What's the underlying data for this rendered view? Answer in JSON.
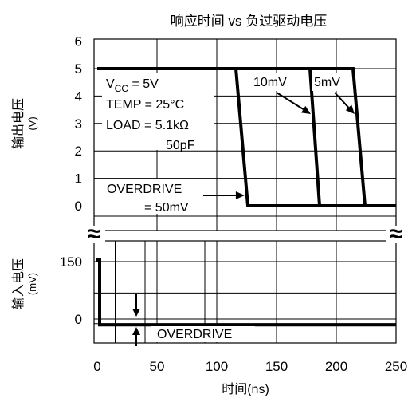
{
  "chart_data": {
    "type": "line",
    "title": "响应时间 vs 负过驱动电压",
    "xlabel": "时间(ns)",
    "x_ticks": [
      "0",
      "50",
      "100",
      "150",
      "200",
      "250"
    ],
    "xlim": [
      0,
      250
    ],
    "output_panel": {
      "ylabel": "输出电压",
      "ylabel_unit": "(V)",
      "y_ticks": [
        "6",
        "5",
        "4",
        "3",
        "2",
        "1",
        "0"
      ],
      "ylim": [
        -0.6,
        6
      ],
      "conditions": [
        "V_CC = 5V",
        "TEMP = 25°C",
        "LOAD = 5.1kΩ",
        "50pF"
      ],
      "series": [
        {
          "name": "OVERDRIVE = 50mV",
          "x": [
            0,
            116,
            126,
            250
          ],
          "y": [
            5,
            5,
            0,
            0
          ]
        },
        {
          "name": "10mV",
          "x": [
            0,
            178,
            186,
            250
          ],
          "y": [
            5,
            5,
            0,
            0
          ]
        },
        {
          "name": "5mV",
          "x": [
            0,
            214,
            224,
            250
          ],
          "y": [
            5,
            5,
            0,
            0
          ]
        }
      ],
      "annotations": {
        "overdrive_line1": "OVERDRIVE",
        "overdrive_line2": "= 50mV",
        "label_10mv": "10mV",
        "label_5mv": "5mV"
      }
    },
    "input_panel": {
      "ylabel": "输入电压",
      "ylabel_unit": "(mV)",
      "y_ticks": [
        "150",
        "0"
      ],
      "series": [
        {
          "name": "input",
          "x": [
            0,
            0,
            2,
            2,
            250
          ],
          "y": [
            150,
            155,
            155,
            -15,
            -15
          ]
        }
      ],
      "annotation": "OVERDRIVE"
    },
    "grid": true,
    "axis_break": "≈"
  }
}
